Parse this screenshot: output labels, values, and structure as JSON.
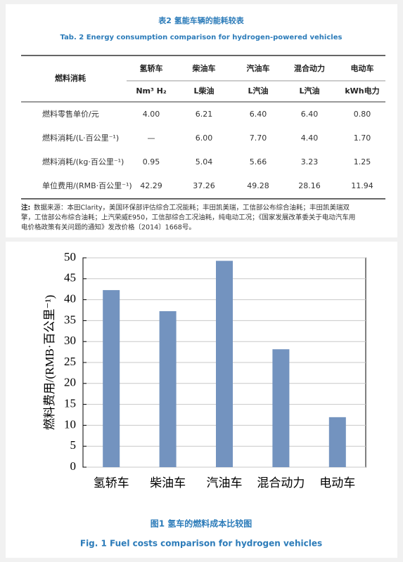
{
  "table": {
    "title": "表2 氢能车辆的能耗较表",
    "subtitle": "Tab. 2 Energy consumption comparison for hydrogen-powered vehicles",
    "corner": "燃料消耗",
    "columns": [
      "氢轿车",
      "柴油车",
      "汽油车",
      "混合动力",
      "电动车"
    ],
    "units": [
      "Nm³ H₂",
      "L柴油",
      "L汽油",
      "L汽油",
      "kWh电力"
    ],
    "rows": [
      [
        "燃料零售单价/元",
        "4.00",
        "6.21",
        "6.40",
        "6.40",
        "0.80"
      ],
      [
        "燃料消耗/(L·百公里⁻¹)",
        "—",
        "6.00",
        "7.70",
        "4.40",
        "1.70"
      ],
      [
        "燃料消耗/(kg·百公里⁻¹)",
        "0.95",
        "5.04",
        "5.66",
        "3.23",
        "1.25"
      ],
      [
        "单位费用/(RMB·百公里⁻¹)",
        "42.29",
        "37.26",
        "49.28",
        "28.16",
        "11.94"
      ]
    ],
    "note_label": "注:",
    "note_lines": [
      "数据来源：本田Clarity，美国环保部评估综合工况能耗；丰田凯美瑞，工信部公布综合油耗；丰田凯美瑞双",
      "擎，工信部公布综合油耗；上汽荣威E950，工信部综合工况油耗，纯电动工况；《国家发展改革委关于电动汽车用",
      "电价格政策有关问题的通知》发改价格〔2014〕1668号。"
    ]
  },
  "chart_data": {
    "type": "bar",
    "title": "图1 氢车的燃料成本比较图",
    "subtitle": "Fig. 1 Fuel costs comparison for hydrogen vehicles",
    "y_label": "燃料费用/(RMB·百公里⁻¹)",
    "categories": [
      "氢轿车",
      "柴油车",
      "汽油车",
      "混合动力",
      "电动车"
    ],
    "values": [
      42.29,
      37.26,
      49.28,
      28.16,
      11.94
    ],
    "color": "#7393bf",
    "ylim": [
      0,
      50
    ],
    "yticks": [
      0,
      5,
      10,
      15,
      20,
      25,
      30,
      35,
      40,
      45,
      50
    ],
    "grid": true
  }
}
